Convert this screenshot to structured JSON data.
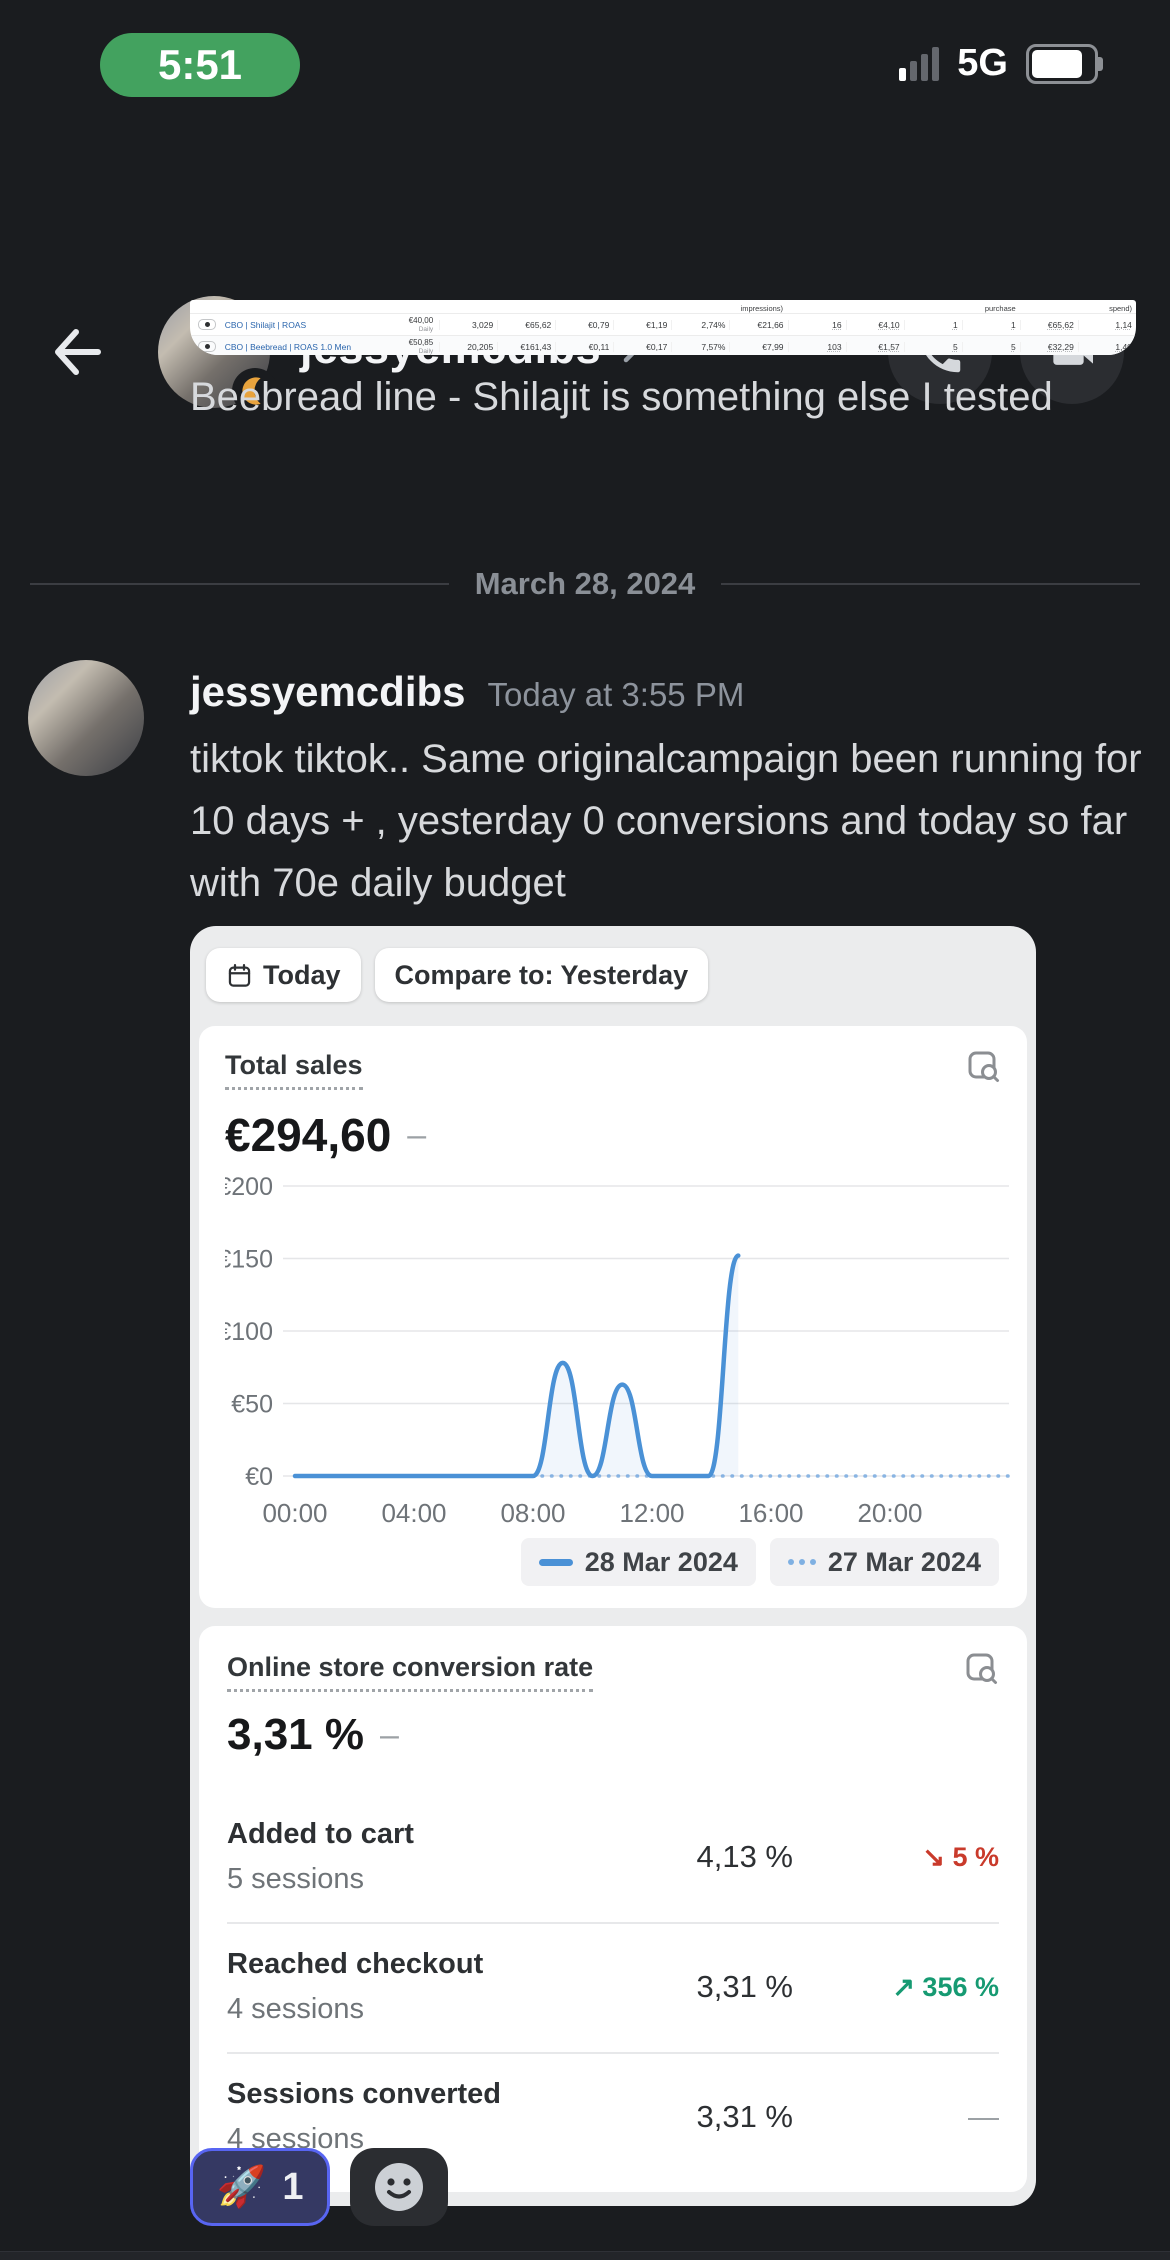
{
  "status_bar": {
    "time": "5:51",
    "network": "5G"
  },
  "header": {
    "username": "jessyemcdibs",
    "chevron": "›"
  },
  "ads_table": {
    "header_fragments": [
      "",
      "",
      "",
      "",
      "",
      "impressions)",
      "",
      "",
      "",
      "purchase",
      "",
      "spend)"
    ],
    "rows": [
      {
        "name": "CBO | Shilajit | ROAS",
        "budget": "€40,00",
        "period": "Daily",
        "values": [
          "3,029",
          "€65,62",
          "€0,79",
          "€1,19",
          "2,74%",
          "€21,66",
          "16",
          "€4,10",
          "1",
          "1",
          "€65,62",
          "1,14"
        ]
      },
      {
        "name": "CBO | Beebread | ROAS 1.0 Men",
        "budget": "€50,85",
        "period": "Daily",
        "values": [
          "20,205",
          "€161,43",
          "€0,11",
          "€0,17",
          "7,57%",
          "€7,99",
          "103",
          "€1,57",
          "5",
          "5",
          "€32,29",
          "1,40"
        ]
      }
    ]
  },
  "older_message": {
    "text": "Beebread line - Shilajit is something else I tested"
  },
  "date_divider": {
    "label": "March 28, 2024"
  },
  "message": {
    "username": "jessyemcdibs",
    "timestamp": "Today at 3:55 PM",
    "text": "tiktok tiktok.. Same originalcampaign been running for 10 days + , yesterday 0 conversions and today so far with 70e daily budget"
  },
  "analytics": {
    "filters": {
      "date_label": "Today",
      "compare_label": "Compare to: Yesterday"
    },
    "total_sales": {
      "title": "Total sales",
      "value": "€294,60",
      "change_dash": "–"
    },
    "chart_data": {
      "type": "line",
      "title": "Total sales",
      "ylabel": "€",
      "ylim": [
        0,
        200
      ],
      "xlim_hours": [
        0,
        24
      ],
      "grid": true,
      "legend_position": "bottom-right",
      "y_ticks": [
        {
          "v": 0,
          "label": "€0"
        },
        {
          "v": 50,
          "label": "€50"
        },
        {
          "v": 100,
          "label": "€100"
        },
        {
          "v": 150,
          "label": "€150"
        },
        {
          "v": 200,
          "label": "€200"
        }
      ],
      "x_ticks": [
        {
          "h": 0,
          "label": "00:00"
        },
        {
          "h": 4,
          "label": "04:00"
        },
        {
          "h": 8,
          "label": "08:00"
        },
        {
          "h": 12,
          "label": "12:00"
        },
        {
          "h": 16,
          "label": "16:00"
        },
        {
          "h": 20,
          "label": "20:00"
        }
      ],
      "series": [
        {
          "name": "28 Mar 2024",
          "style": "solid",
          "points": [
            [
              0,
              0
            ],
            [
              8,
              0
            ],
            [
              9,
              78
            ],
            [
              10,
              0
            ],
            [
              11,
              63
            ],
            [
              12,
              0
            ],
            [
              13.9,
              0
            ],
            [
              14.9,
              152
            ]
          ]
        },
        {
          "name": "27 Mar 2024",
          "style": "dotted",
          "points": [
            [
              0,
              0
            ],
            [
              24,
              0
            ]
          ]
        }
      ]
    },
    "legend": [
      {
        "label": "28 Mar 2024",
        "style": "solid"
      },
      {
        "label": "27 Mar 2024",
        "style": "dotted"
      }
    ],
    "conversion": {
      "title": "Online store conversion rate",
      "value": "3,31 %",
      "change_dash": "–",
      "rows": [
        {
          "label": "Added to cart",
          "sessions": "5 sessions",
          "rate": "4,13 %",
          "arrow": "↘",
          "delta": "5 %",
          "direction": "negative"
        },
        {
          "label": "Reached checkout",
          "sessions": "4 sessions",
          "rate": "3,31 %",
          "arrow": "↗",
          "delta": "356 %",
          "direction": "positive"
        },
        {
          "label": "Sessions converted",
          "sessions": "4 sessions",
          "rate": "3,31 %",
          "arrow": "",
          "delta": "—",
          "direction": "neutral"
        }
      ]
    }
  },
  "reactions": {
    "emoji": "🚀",
    "count": "1"
  },
  "colors": {
    "accent_blurple": "#5865f2",
    "status_green": "#43a25f",
    "chart_blue": "#4a91d6",
    "chart_blue_dotted": "#8ab5e3",
    "negative_red": "#c93a2b",
    "positive_green": "#169a72",
    "idle_orange": "#e8a33d"
  }
}
